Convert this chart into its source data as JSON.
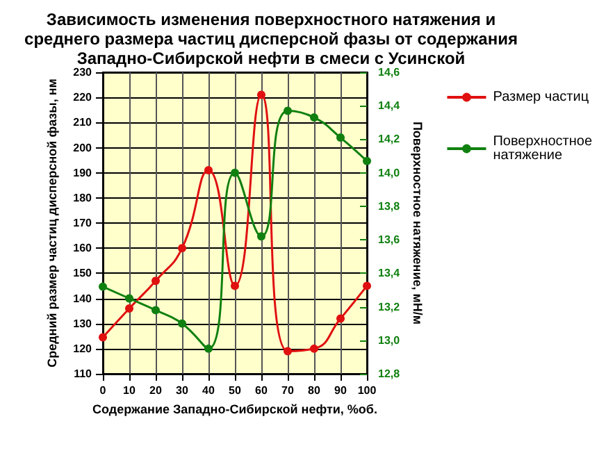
{
  "chart_data": {
    "type": "line",
    "title": "Зависимость изменения поверхностного натяжения и\nсреднего размера частиц дисперсной фазы от содержания\nЗападно-Сибирской нефти в смеси с Усинской",
    "xlabel": "Содержание Западно-Сибирской нефти, %об.",
    "ylabel": "Средний размер частиц дисперсной фазы, нм",
    "y2label": "Поверхностное натяжение, мН/м",
    "x": [
      0,
      10,
      20,
      30,
      40,
      50,
      60,
      70,
      80,
      90,
      100
    ],
    "series": [
      {
        "name": "Размер частиц",
        "color": "#e01010",
        "values": [
          124.5,
          136,
          147,
          160,
          191,
          145,
          221,
          119,
          120,
          132,
          145
        ]
      },
      {
        "name": "Поверхностное натяжение",
        "color": "#108010",
        "axis": "y2",
        "values": [
          13.32,
          13.25,
          13.18,
          13.1,
          12.95,
          14.0,
          13.62,
          14.37,
          14.33,
          14.21,
          14.07
        ]
      }
    ],
    "xlim": [
      0,
      100
    ],
    "xticks": [
      0,
      10,
      20,
      30,
      40,
      50,
      60,
      70,
      80,
      90,
      100
    ],
    "ylim": [
      110,
      230
    ],
    "yticks": [
      110,
      120,
      130,
      140,
      150,
      160,
      170,
      180,
      190,
      200,
      210,
      220,
      230
    ],
    "y2lim": [
      12.8,
      14.6
    ],
    "y2ticks": [
      {
        "value": 12.8,
        "label": "12,8"
      },
      {
        "value": 13.0,
        "label": "13,0"
      },
      {
        "value": 13.2,
        "label": "13,2"
      },
      {
        "value": 13.4,
        "label": "13,4"
      },
      {
        "value": 13.6,
        "label": "13,6"
      },
      {
        "value": 13.8,
        "label": "13,8"
      },
      {
        "value": 14.0,
        "label": "14,0"
      },
      {
        "value": 14.2,
        "label": "14,2"
      },
      {
        "value": 14.4,
        "label": "14,4"
      },
      {
        "value": 14.6,
        "label": "14,6"
      }
    ],
    "grid": true,
    "legend": "right",
    "marker": "circle",
    "line_style": "solid"
  }
}
